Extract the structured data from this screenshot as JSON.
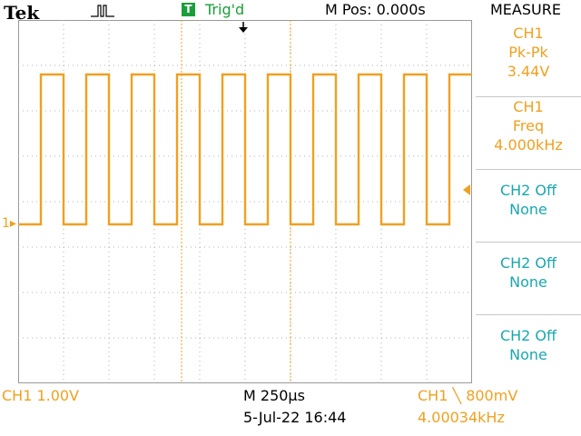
{
  "header": {
    "brand": "Tek",
    "trigger_badge": "T",
    "trigger_status": "Trig'd",
    "m_pos": "M Pos: 0.000s",
    "menu_title": "MEASURE"
  },
  "side_menu": [
    {
      "lines": [
        "CH1",
        "Pk-Pk",
        "3.44V"
      ],
      "color": "#f0a020"
    },
    {
      "lines": [
        "CH1",
        "Freq",
        "4.000kHz"
      ],
      "color": "#f0a020"
    },
    {
      "lines": [
        "CH2 Off",
        "None"
      ],
      "color": "#1aa7b0"
    },
    {
      "lines": [
        "CH2 Off",
        "None"
      ],
      "color": "#1aa7b0"
    },
    {
      "lines": [
        "CH2 Off",
        "None"
      ],
      "color": "#1aa7b0"
    }
  ],
  "footer": {
    "ch1_scale": "CH1  1.00V",
    "timebase": "M 250µs",
    "datetime": "5-Jul-22 16:44",
    "trigger_info": "CH1 ╲ 800mV",
    "frequency": "4.00034kHz"
  },
  "channel_marker": "1",
  "colors": {
    "ch1": "#f0a020",
    "ch2": "#1aa7b0",
    "trig": "#1a9e3a",
    "grid": "#b0b0b0"
  }
}
